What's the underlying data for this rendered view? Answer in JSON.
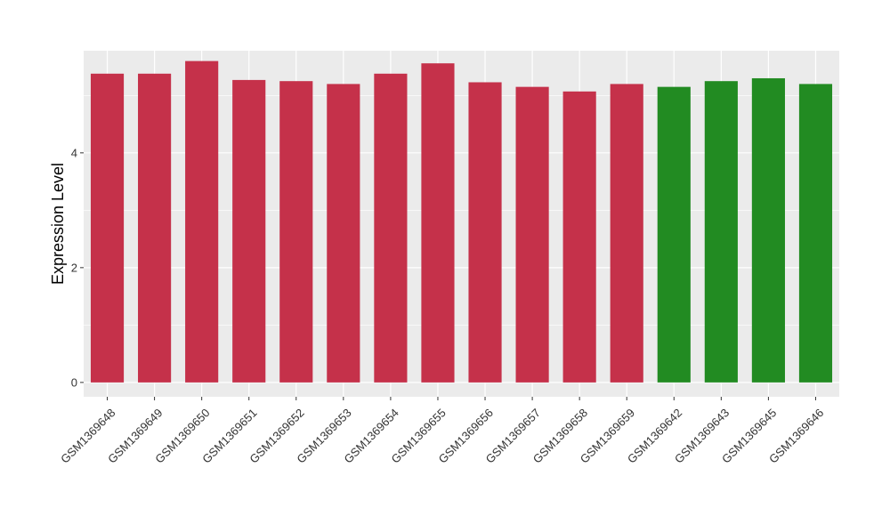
{
  "chart_data": {
    "type": "bar",
    "ylabel": "Expression Level",
    "xlabel": "",
    "title": "",
    "ylim": [
      -0.25,
      5.78
    ],
    "yticks": [
      0,
      2,
      4
    ],
    "grid": true,
    "legend": "none",
    "categories": [
      "GSM1369648",
      "GSM1369649",
      "GSM1369650",
      "GSM1369651",
      "GSM1369652",
      "GSM1369653",
      "GSM1369654",
      "GSM1369655",
      "GSM1369656",
      "GSM1369657",
      "GSM1369658",
      "GSM1369659",
      "GSM1369642",
      "GSM1369643",
      "GSM1369645",
      "GSM1369646"
    ],
    "values": [
      5.38,
      5.38,
      5.6,
      5.27,
      5.25,
      5.2,
      5.38,
      5.56,
      5.23,
      5.15,
      5.07,
      5.2,
      5.15,
      5.25,
      5.3,
      5.2
    ],
    "bar_colors": [
      "#c5314a",
      "#c5314a",
      "#c5314a",
      "#c5314a",
      "#c5314a",
      "#c5314a",
      "#c5314a",
      "#c5314a",
      "#c5314a",
      "#c5314a",
      "#c5314a",
      "#c5314a",
      "#228b22",
      "#228b22",
      "#228b22",
      "#228b22"
    ],
    "panel_background": "#ebebeb",
    "gridline_color": "#ffffff"
  }
}
